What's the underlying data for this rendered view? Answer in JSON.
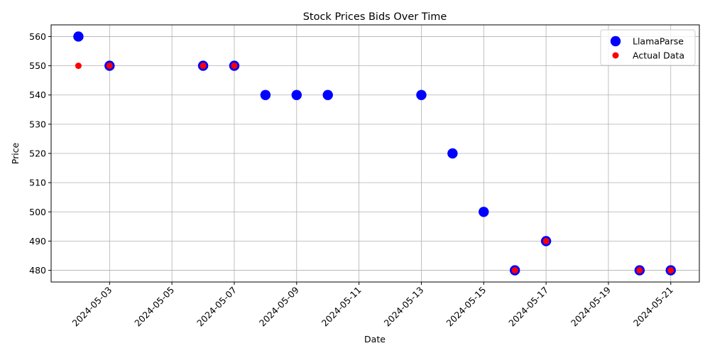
{
  "chart_data": {
    "type": "scatter",
    "title": "Stock Prices Bids Over Time",
    "xlabel": "Date",
    "ylabel": "Price",
    "grid": true,
    "legend_position": "top-right",
    "x_axis_dates": [
      "2024-05-02",
      "2024-05-03",
      "2024-05-04",
      "2024-05-05",
      "2024-05-06",
      "2024-05-07",
      "2024-05-08",
      "2024-05-09",
      "2024-05-10",
      "2024-05-11",
      "2024-05-12",
      "2024-05-13",
      "2024-05-14",
      "2024-05-15",
      "2024-05-16",
      "2024-05-17",
      "2024-05-18",
      "2024-05-19",
      "2024-05-20",
      "2024-05-21"
    ],
    "xlim": [
      "2024-05-01T03:00",
      "2024-05-21T22:00"
    ],
    "ylim": [
      476,
      564
    ],
    "x_ticks": [
      "2024-05-03",
      "2024-05-05",
      "2024-05-07",
      "2024-05-09",
      "2024-05-11",
      "2024-05-13",
      "2024-05-15",
      "2024-05-17",
      "2024-05-19",
      "2024-05-21"
    ],
    "y_ticks": [
      480,
      490,
      500,
      510,
      520,
      530,
      540,
      550,
      560
    ],
    "series": [
      {
        "name": "LlamaParse",
        "color": "#0000ff",
        "marker": "large-circle",
        "points": [
          {
            "x": "2024-05-02",
            "y": 560
          },
          {
            "x": "2024-05-03",
            "y": 550
          },
          {
            "x": "2024-05-06",
            "y": 550
          },
          {
            "x": "2024-05-07",
            "y": 550
          },
          {
            "x": "2024-05-08",
            "y": 540
          },
          {
            "x": "2024-05-09",
            "y": 540
          },
          {
            "x": "2024-05-10",
            "y": 540
          },
          {
            "x": "2024-05-13",
            "y": 540
          },
          {
            "x": "2024-05-14",
            "y": 520
          },
          {
            "x": "2024-05-15",
            "y": 500
          },
          {
            "x": "2024-05-16",
            "y": 480
          },
          {
            "x": "2024-05-17",
            "y": 490
          },
          {
            "x": "2024-05-20",
            "y": 480
          },
          {
            "x": "2024-05-21",
            "y": 480
          }
        ]
      },
      {
        "name": "Actual Data",
        "color": "#ff0000",
        "marker": "small-circle",
        "points": [
          {
            "x": "2024-05-02",
            "y": 550
          },
          {
            "x": "2024-05-03",
            "y": 550
          },
          {
            "x": "2024-05-06",
            "y": 550
          },
          {
            "x": "2024-05-07",
            "y": 550
          },
          {
            "x": "2024-05-16",
            "y": 480
          },
          {
            "x": "2024-05-17",
            "y": 490
          },
          {
            "x": "2024-05-20",
            "y": 480
          },
          {
            "x": "2024-05-21",
            "y": 480
          }
        ]
      }
    ]
  }
}
